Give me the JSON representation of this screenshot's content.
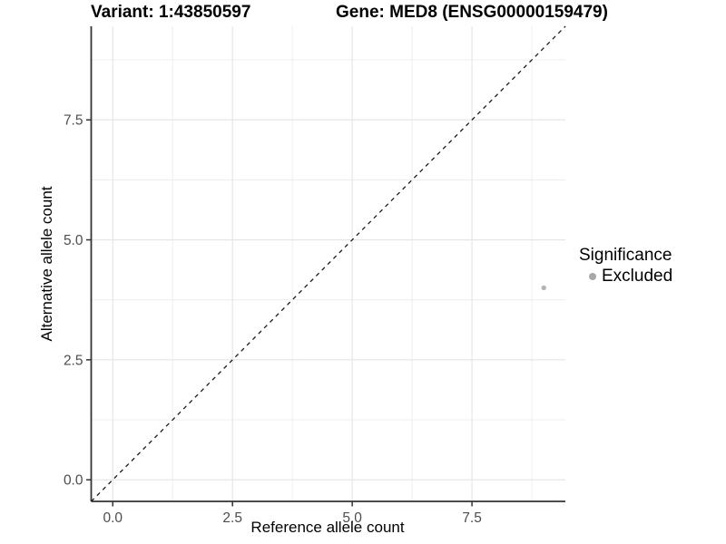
{
  "chart_data": {
    "type": "scatter",
    "title_left": "Variant: 1:43850597",
    "title_right": "Gene: MED8 (ENSG00000159479)",
    "xlabel": "Reference allele count",
    "ylabel": "Alternative allele count",
    "xlim": [
      -0.45,
      9.45
    ],
    "ylim": [
      -0.45,
      9.45
    ],
    "x_ticks": [
      0,
      2.5,
      5,
      7.5
    ],
    "x_tick_labels": [
      "0.0",
      "2.5",
      "5.0",
      "7.5"
    ],
    "x_minor_ticks": [
      1.25,
      3.75,
      6.25,
      8.75
    ],
    "y_ticks": [
      0,
      2.5,
      5,
      7.5
    ],
    "y_tick_labels": [
      "0.0",
      "2.5",
      "5.0",
      "7.5"
    ],
    "y_minor_ticks": [
      1.25,
      3.75,
      6.25,
      8.75
    ],
    "grid": "major and minor gridlines, light gray on white panel",
    "reference_line": {
      "type": "identity",
      "equation": "y = x",
      "style": "dashed",
      "color": "#1a1a1a"
    },
    "series": [
      {
        "name": "Excluded",
        "significance": "Excluded",
        "color": "#b5b5b5",
        "points": [
          {
            "x": 9,
            "y": 4
          }
        ]
      }
    ],
    "legend": {
      "title": "Significance",
      "position": "right",
      "key_color": "#a8a8a8"
    },
    "colors": {
      "grid_minor": "#ececec",
      "grid_major": "#e4e4e4",
      "axis_line": "#333333",
      "tick_mark": "#333333",
      "tick_text": "#4d4d4d",
      "title_text": "#000000",
      "background": "#ffffff"
    }
  }
}
